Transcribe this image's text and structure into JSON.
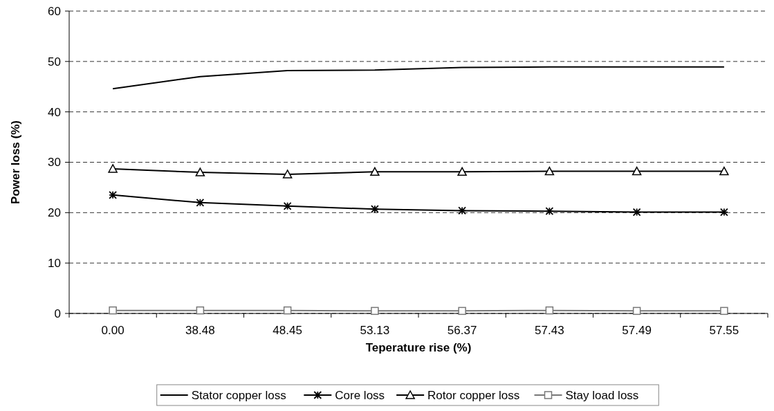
{
  "chart_data": {
    "type": "line",
    "xlabel": "Teperature rise (%)",
    "ylabel": "Power loss (%)",
    "categories": [
      "0.00",
      "38.48",
      "48.45",
      "53.13",
      "56.37",
      "57.43",
      "57.49",
      "57.55"
    ],
    "ylim": [
      0,
      60
    ],
    "yticks": [
      0,
      10,
      20,
      30,
      40,
      50,
      60
    ],
    "grid": "y",
    "legend": "bottom",
    "series": [
      {
        "name": "Stator copper loss",
        "color": "#000000",
        "marker": "none",
        "values": [
          44.6,
          47.0,
          48.2,
          48.3,
          48.8,
          48.9,
          48.9,
          48.9
        ]
      },
      {
        "name": "Core loss",
        "color": "#000000",
        "marker": "cross",
        "values": [
          23.5,
          22.0,
          21.3,
          20.7,
          20.4,
          20.3,
          20.1,
          20.1
        ]
      },
      {
        "name": "Rotor copper loss",
        "color": "#000000",
        "marker": "triangle",
        "values": [
          28.7,
          28.0,
          27.6,
          28.1,
          28.1,
          28.2,
          28.2,
          28.2
        ]
      },
      {
        "name": "Stay load loss",
        "color": "#777777",
        "marker": "square",
        "values": [
          0.6,
          0.6,
          0.6,
          0.5,
          0.5,
          0.6,
          0.5,
          0.5
        ]
      }
    ]
  }
}
